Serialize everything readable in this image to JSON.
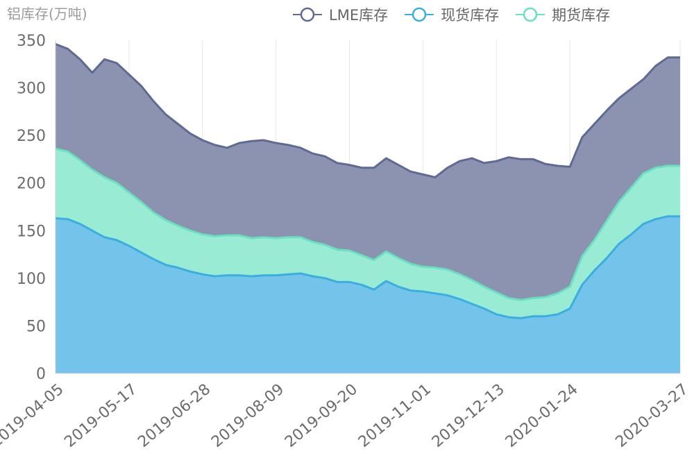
{
  "chart_data": {
    "type": "area",
    "ylabel": "铝库存(万吨)",
    "ylim": [
      0,
      350
    ],
    "yticks": [
      0,
      50,
      100,
      150,
      200,
      250,
      300,
      350
    ],
    "x_tick_labels": [
      "2019-04-05",
      "2019-05-17",
      "2019-06-28",
      "2019-08-09",
      "2019-09-20",
      "2019-11-01",
      "2019-12-13",
      "2020-01-24",
      "2020-03-27"
    ],
    "x": [
      "2019-04-05",
      "2019-04-12",
      "2019-04-19",
      "2019-04-26",
      "2019-05-03",
      "2019-05-10",
      "2019-05-17",
      "2019-05-24",
      "2019-05-31",
      "2019-06-07",
      "2019-06-14",
      "2019-06-21",
      "2019-06-28",
      "2019-07-05",
      "2019-07-12",
      "2019-07-19",
      "2019-07-26",
      "2019-08-02",
      "2019-08-09",
      "2019-08-16",
      "2019-08-23",
      "2019-08-30",
      "2019-09-06",
      "2019-09-13",
      "2019-09-20",
      "2019-09-27",
      "2019-10-04",
      "2019-10-11",
      "2019-10-18",
      "2019-10-25",
      "2019-11-01",
      "2019-11-08",
      "2019-11-15",
      "2019-11-22",
      "2019-11-29",
      "2019-12-06",
      "2019-12-13",
      "2019-12-20",
      "2019-12-27",
      "2020-01-03",
      "2020-01-10",
      "2020-01-17",
      "2020-01-24",
      "2020-01-31",
      "2020-02-07",
      "2020-02-14",
      "2020-02-21",
      "2020-02-28",
      "2020-03-06",
      "2020-03-13",
      "2020-03-20",
      "2020-03-27"
    ],
    "grid": "vertical",
    "legend_position": "top-center",
    "series": [
      {
        "name": "LME库存",
        "color": "#5e6a94",
        "fill": "#8c93b0",
        "values": [
          346,
          341,
          330,
          316,
          330,
          326,
          314,
          302,
          286,
          272,
          262,
          252,
          245,
          240,
          237,
          242,
          244,
          245,
          242,
          240,
          237,
          231,
          228,
          221,
          219,
          216,
          216,
          226,
          219,
          212,
          209,
          206,
          216,
          223,
          226,
          221,
          223,
          227,
          225,
          225,
          220,
          218,
          217,
          248,
          262,
          276,
          289,
          299,
          309,
          323,
          332,
          332
        ]
      },
      {
        "name": "现货库存",
        "color": "#3aaedf",
        "fill": "#74c3ea",
        "values": [
          163,
          162,
          157,
          150,
          143,
          140,
          134,
          127,
          120,
          114,
          111,
          107,
          104,
          102,
          103,
          103,
          102,
          103,
          103,
          104,
          105,
          102,
          100,
          96,
          96,
          93,
          88,
          97,
          91,
          87,
          86,
          84,
          82,
          78,
          73,
          68,
          62,
          59,
          58,
          60,
          60,
          62,
          68,
          93,
          108,
          121,
          136,
          146,
          157,
          162,
          165,
          165
        ]
      },
      {
        "name": "期货库存",
        "color": "#6ae0c0",
        "fill": "#9aebd4",
        "values": [
          236,
          233,
          224,
          214,
          206,
          200,
          190,
          180,
          169,
          161,
          155,
          150,
          146,
          144,
          145,
          145,
          142,
          143,
          142,
          143,
          143,
          138,
          135,
          130,
          129,
          124,
          119,
          128,
          121,
          115,
          112,
          111,
          109,
          104,
          98,
          91,
          85,
          79,
          77,
          79,
          80,
          84,
          91,
          123,
          140,
          160,
          180,
          195,
          210,
          216,
          218,
          218
        ]
      }
    ]
  }
}
